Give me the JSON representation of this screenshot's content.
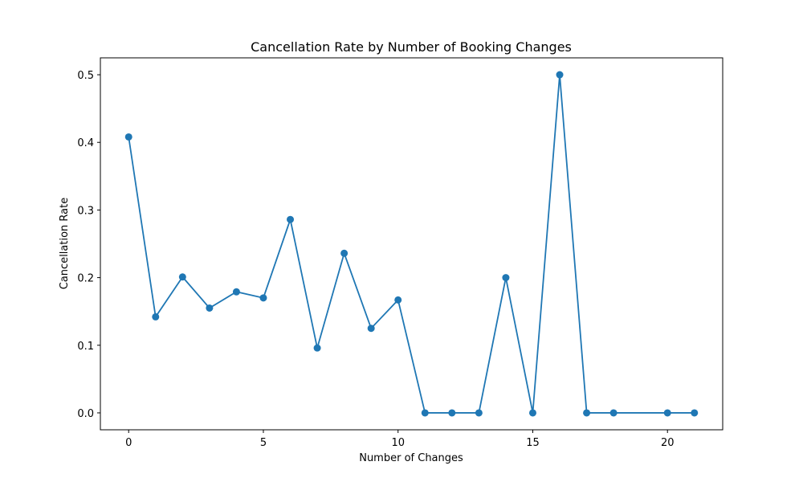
{
  "chart_data": {
    "type": "line",
    "title": "Cancellation Rate by Number of Booking Changes",
    "xlabel": "Number of Changes",
    "ylabel": "Cancellation Rate",
    "xlim": [
      -1.05,
      22.05
    ],
    "ylim": [
      -0.025,
      0.525
    ],
    "xticks": [
      0,
      5,
      10,
      15,
      20
    ],
    "yticks": [
      0.0,
      0.1,
      0.2,
      0.3,
      0.4,
      0.5
    ],
    "xtick_labels": [
      "0",
      "5",
      "10",
      "15",
      "20"
    ],
    "ytick_labels": [
      "0.0",
      "0.1",
      "0.2",
      "0.3",
      "0.4",
      "0.5"
    ],
    "grid": false,
    "series": [
      {
        "color": "#1f77b4",
        "marker": "circle",
        "x": [
          0,
          1,
          2,
          3,
          4,
          5,
          6,
          7,
          8,
          9,
          10,
          11,
          12,
          13,
          14,
          15,
          16,
          17,
          18,
          20,
          21
        ],
        "values": [
          0.408,
          0.142,
          0.201,
          0.155,
          0.179,
          0.17,
          0.286,
          0.096,
          0.236,
          0.125,
          0.167,
          0.0,
          0.0,
          0.0,
          0.2,
          0.0,
          0.5,
          0.0,
          0.0,
          0.0,
          0.0
        ]
      }
    ]
  }
}
